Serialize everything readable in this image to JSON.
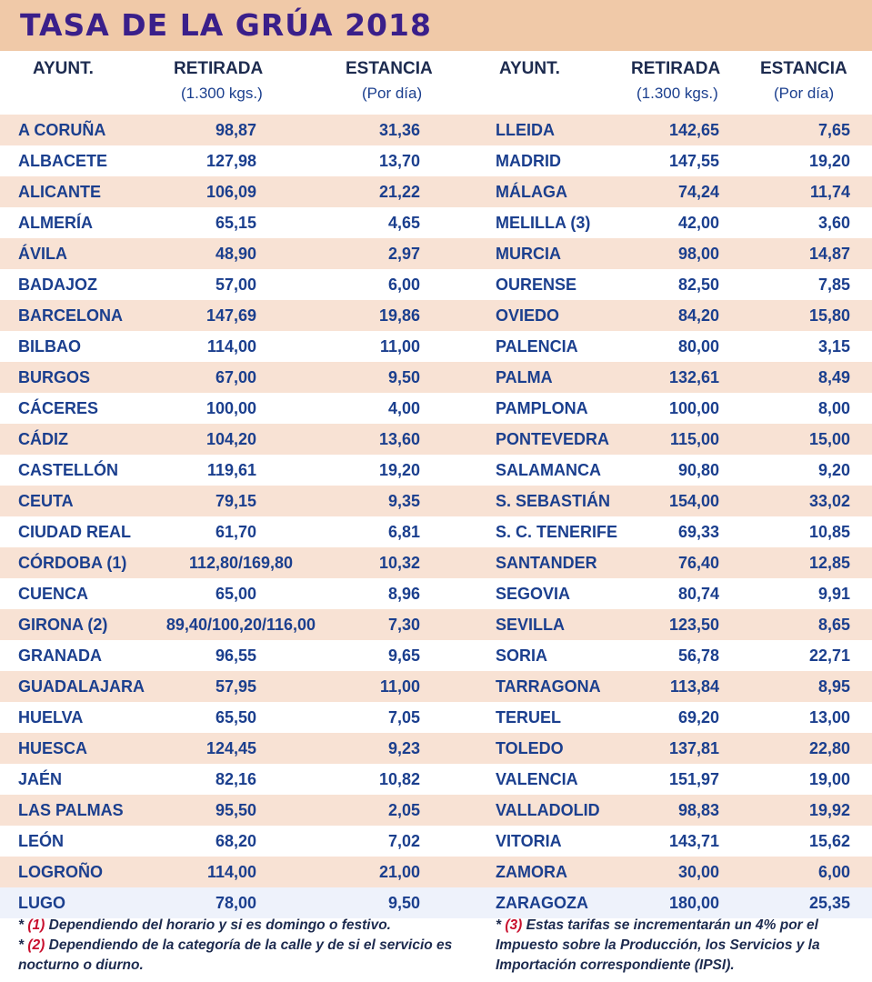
{
  "title": "TASA DE LA GRÚA 2018",
  "headers": {
    "ayunt": "AYUNT.",
    "retirada": "RETIRADA",
    "retirada_sub": "(1.300 kgs.)",
    "estancia": "ESTANCIA",
    "estancia_sub": "(Por día)"
  },
  "left_rows": [
    {
      "name": "A CORUÑA",
      "retirada": "98,87",
      "estancia": "31,36"
    },
    {
      "name": "ALBACETE",
      "retirada": "127,98",
      "estancia": "13,70"
    },
    {
      "name": "ALICANTE",
      "retirada": "106,09",
      "estancia": "21,22"
    },
    {
      "name": "ALMERÍA",
      "retirada": "65,15",
      "estancia": "4,65"
    },
    {
      "name": "ÁVILA",
      "retirada": "48,90",
      "estancia": "2,97"
    },
    {
      "name": "BADAJOZ",
      "retirada": "57,00",
      "estancia": "6,00"
    },
    {
      "name": "BARCELONA",
      "retirada": "147,69",
      "estancia": "19,86"
    },
    {
      "name": "BILBAO",
      "retirada": "114,00",
      "estancia": "11,00"
    },
    {
      "name": "BURGOS",
      "retirada": "67,00",
      "estancia": "9,50"
    },
    {
      "name": "CÁCERES",
      "retirada": "100,00",
      "estancia": "4,00"
    },
    {
      "name": "CÁDIZ",
      "retirada": "104,20",
      "estancia": "13,60"
    },
    {
      "name": "CASTELLÓN",
      "retirada": "119,61",
      "estancia": "19,20"
    },
    {
      "name": "CEUTA",
      "retirada": "79,15",
      "estancia": "9,35"
    },
    {
      "name": "CIUDAD REAL",
      "retirada": "61,70",
      "estancia": "6,81"
    },
    {
      "name": "CÓRDOBA (1)",
      "retirada": "112,80/169,80",
      "estancia": "10,32"
    },
    {
      "name": "CUENCA",
      "retirada": "65,00",
      "estancia": "8,96"
    },
    {
      "name": "GIRONA (2)",
      "retirada": "89,40/100,20/116,00",
      "estancia": "7,30"
    },
    {
      "name": "GRANADA",
      "retirada": "96,55",
      "estancia": "9,65"
    },
    {
      "name": "GUADALAJARA",
      "retirada": "57,95",
      "estancia": "11,00"
    },
    {
      "name": "HUELVA",
      "retirada": "65,50",
      "estancia": "7,05"
    },
    {
      "name": "HUESCA",
      "retirada": "124,45",
      "estancia": "9,23"
    },
    {
      "name": "JAÉN",
      "retirada": "82,16",
      "estancia": "10,82"
    },
    {
      "name": "LAS PALMAS",
      "retirada": "95,50",
      "estancia": "2,05"
    },
    {
      "name": "LEÓN",
      "retirada": "68,20",
      "estancia": "7,02"
    },
    {
      "name": "LOGROÑO",
      "retirada": "114,00",
      "estancia": "21,00"
    },
    {
      "name": "LUGO",
      "retirada": "78,00",
      "estancia": "9,50"
    }
  ],
  "right_rows": [
    {
      "name": "LLEIDA",
      "retirada": "142,65",
      "estancia": "7,65"
    },
    {
      "name": "MADRID",
      "retirada": "147,55",
      "estancia": "19,20"
    },
    {
      "name": "MÁLAGA",
      "retirada": "74,24",
      "estancia": "11,74"
    },
    {
      "name": "MELILLA (3)",
      "retirada": "42,00",
      "estancia": "3,60"
    },
    {
      "name": "MURCIA",
      "retirada": "98,00",
      "estancia": "14,87"
    },
    {
      "name": "OURENSE",
      "retirada": "82,50",
      "estancia": "7,85"
    },
    {
      "name": "OVIEDO",
      "retirada": "84,20",
      "estancia": "15,80"
    },
    {
      "name": "PALENCIA",
      "retirada": "80,00",
      "estancia": "3,15"
    },
    {
      "name": "PALMA",
      "retirada": "132,61",
      "estancia": "8,49"
    },
    {
      "name": "PAMPLONA",
      "retirada": "100,00",
      "estancia": "8,00"
    },
    {
      "name": "PONTEVEDRA",
      "retirada": "115,00",
      "estancia": "15,00"
    },
    {
      "name": "SALAMANCA",
      "retirada": "90,80",
      "estancia": "9,20"
    },
    {
      "name": "S. SEBASTIÁN",
      "retirada": "154,00",
      "estancia": "33,02"
    },
    {
      "name": "S. C. TENERIFE",
      "retirada": "69,33",
      "estancia": "10,85"
    },
    {
      "name": "SANTANDER",
      "retirada": "76,40",
      "estancia": "12,85"
    },
    {
      "name": "SEGOVIA",
      "retirada": "80,74",
      "estancia": "9,91"
    },
    {
      "name": "SEVILLA",
      "retirada": "123,50",
      "estancia": "8,65"
    },
    {
      "name": "SORIA",
      "retirada": "56,78",
      "estancia": "22,71"
    },
    {
      "name": "TARRAGONA",
      "retirada": "113,84",
      "estancia": "8,95"
    },
    {
      "name": "TERUEL",
      "retirada": "69,20",
      "estancia": "13,00"
    },
    {
      "name": "TOLEDO",
      "retirada": "137,81",
      "estancia": "22,80"
    },
    {
      "name": "VALENCIA",
      "retirada": "151,97",
      "estancia": "19,00"
    },
    {
      "name": "VALLADOLID",
      "retirada": "98,83",
      "estancia": "19,92"
    },
    {
      "name": "VITORIA",
      "retirada": "143,71",
      "estancia": "15,62"
    },
    {
      "name": "ZAMORA",
      "retirada": "30,00",
      "estancia": "6,00"
    },
    {
      "name": "ZARAGOZA",
      "retirada": "180,00",
      "estancia": "25,35"
    }
  ],
  "notes": {
    "n1_mark": "(1)",
    "n1_text": "Dependiendo del horario y si es domingo o festivo.",
    "n2_mark": "(2)",
    "n2_text": "Dependiendo de la categoría de la calle y de si el servicio es nocturno o diurno.",
    "n3_mark": "(3)",
    "n3_text": "Estas tarifas se incrementarán un 4% por el Impuesto sobre la Producción, los Servicios y la Importación correspondiente (IPSI).",
    "asterisk": "*"
  },
  "colors": {
    "title_band": "#f0c9a8",
    "title_text": "#3a1f8a",
    "row_peach": "#f8e2d4",
    "row_last": "#eef2fb",
    "text_blue": "#1b3f8e",
    "note_mark_red": "#c8102e"
  }
}
